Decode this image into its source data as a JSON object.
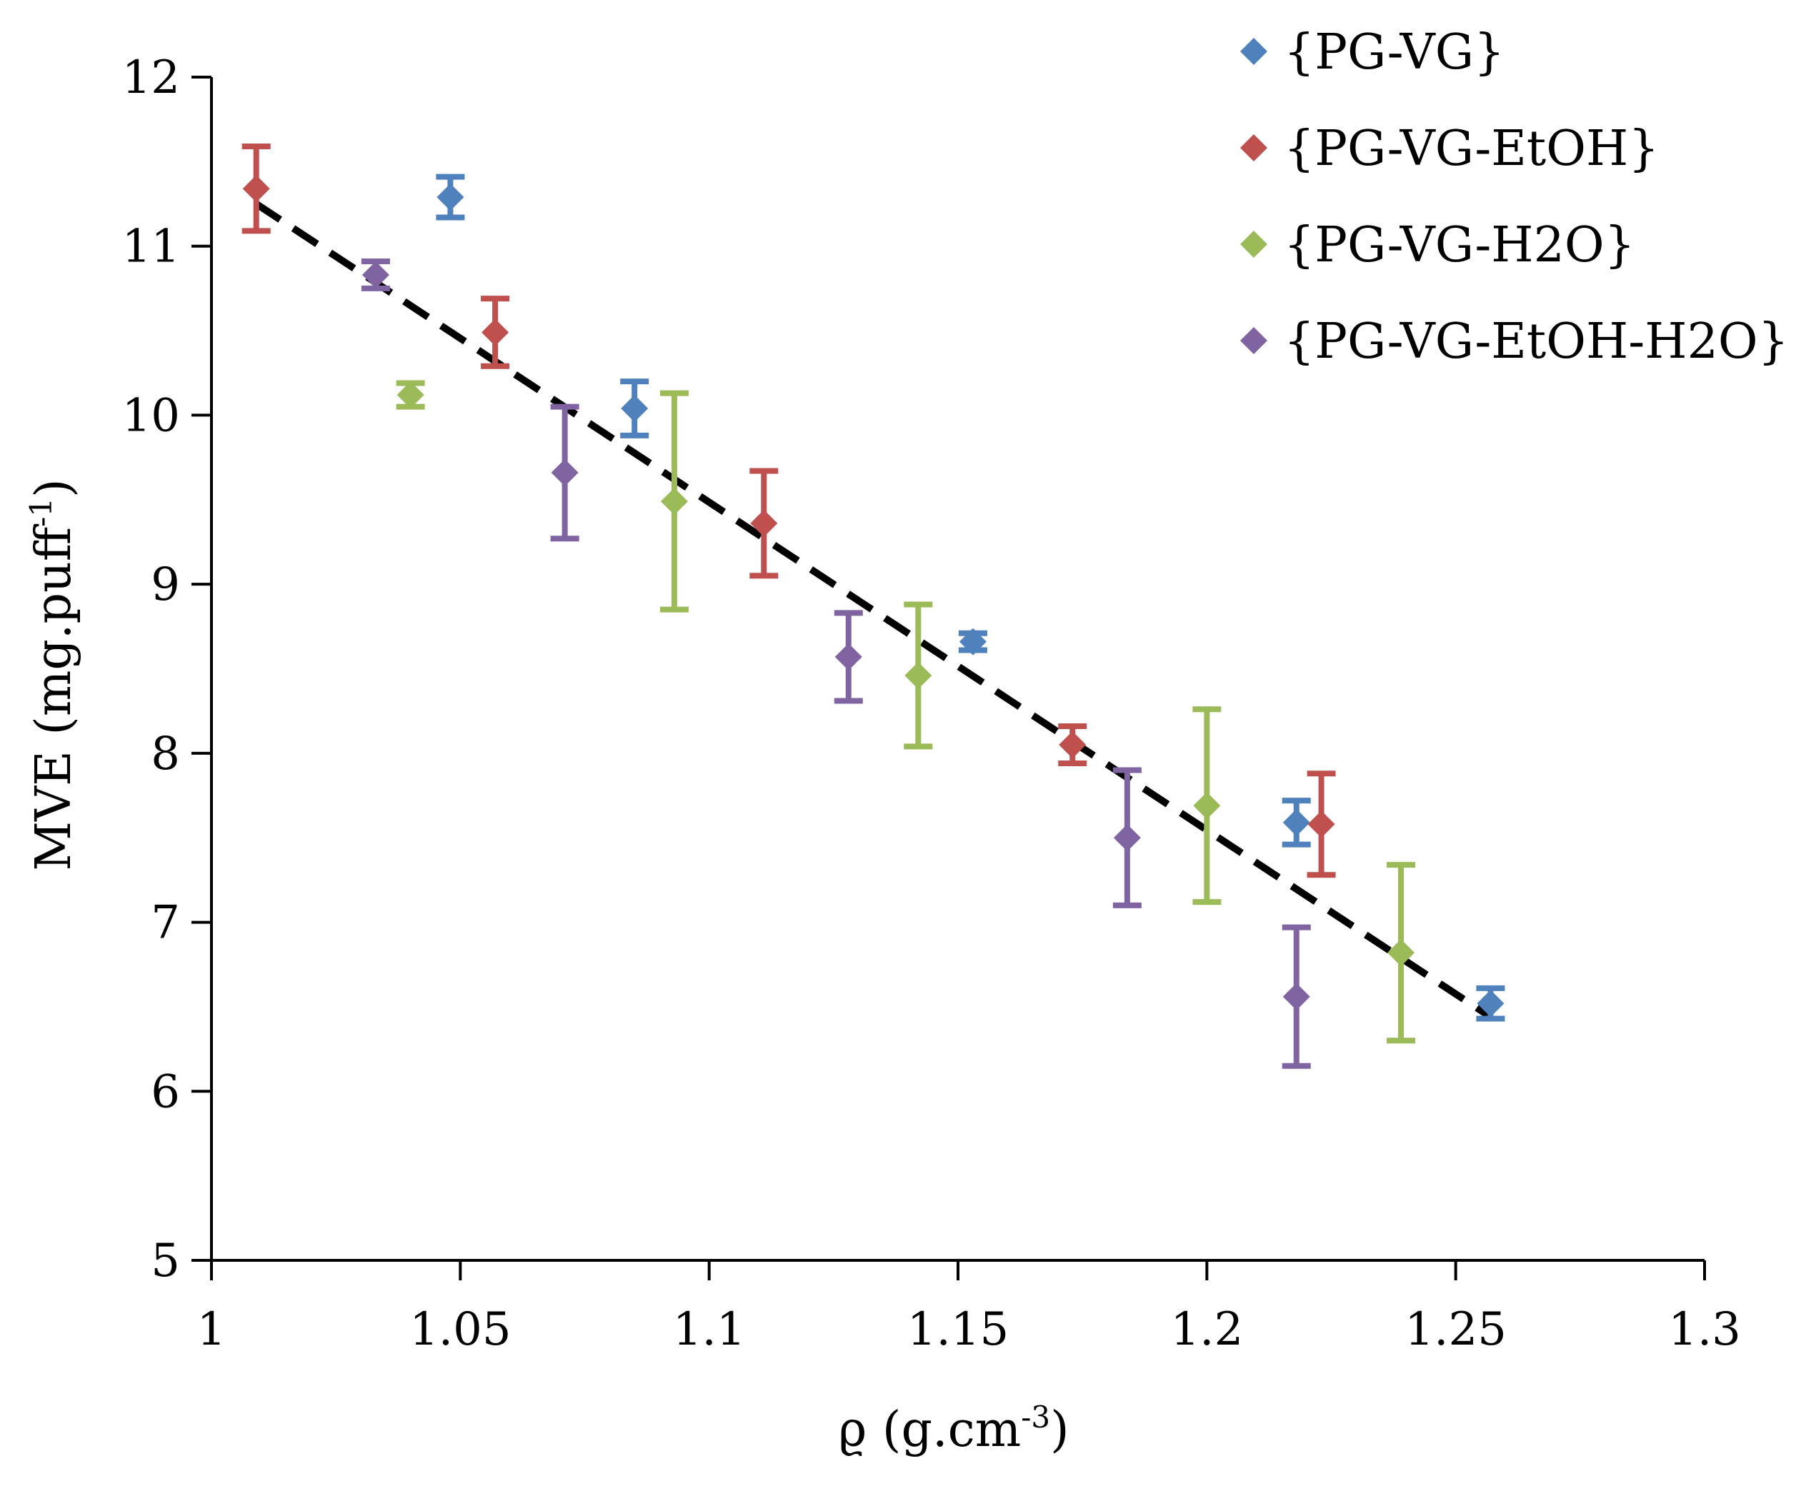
{
  "chart_data": {
    "type": "scatter",
    "title": "",
    "xlabel": "ϱ (g.cm",
    "xlabel_sup": "-3",
    "xlabel_end": ")",
    "ylabel": "MVE (mg.puff",
    "ylabel_sup": "-1",
    "ylabel_end": ")",
    "xlim": [
      1,
      1.3
    ],
    "ylim": [
      5,
      12
    ],
    "x_ticks": [
      1,
      1.05,
      1.1,
      1.15,
      1.2,
      1.25,
      1.3
    ],
    "x_tick_labels": [
      "1",
      "1.05",
      "1.1",
      "1.15",
      "1.2",
      "1.25",
      "1.3"
    ],
    "y_ticks": [
      5,
      6,
      7,
      8,
      9,
      10,
      11,
      12
    ],
    "y_tick_labels": [
      "5",
      "6",
      "7",
      "8",
      "9",
      "10",
      "11",
      "12"
    ],
    "legend_position": "top-right",
    "series": [
      {
        "name": "{PG-VG}",
        "color": "#4F81BD",
        "points": [
          {
            "x": 1.048,
            "y": 11.29,
            "err": 0.12
          },
          {
            "x": 1.085,
            "y": 10.04,
            "err": 0.16
          },
          {
            "x": 1.153,
            "y": 8.66,
            "err": 0.05
          },
          {
            "x": 1.218,
            "y": 7.59,
            "err": 0.13
          },
          {
            "x": 1.257,
            "y": 6.52,
            "err": 0.09
          }
        ]
      },
      {
        "name": "{PG-VG-EtOH}",
        "color": "#C0504D",
        "points": [
          {
            "x": 1.009,
            "y": 11.34,
            "err": 0.25
          },
          {
            "x": 1.057,
            "y": 10.49,
            "err": 0.2
          },
          {
            "x": 1.111,
            "y": 9.36,
            "err": 0.31
          },
          {
            "x": 1.173,
            "y": 8.05,
            "err": 0.11
          },
          {
            "x": 1.223,
            "y": 7.58,
            "err": 0.3
          }
        ]
      },
      {
        "name": "{PG-VG-H2O}",
        "color": "#9BBB59",
        "points": [
          {
            "x": 1.04,
            "y": 10.12,
            "err": 0.07
          },
          {
            "x": 1.093,
            "y": 9.49,
            "err": 0.64
          },
          {
            "x": 1.142,
            "y": 8.46,
            "err": 0.42
          },
          {
            "x": 1.2,
            "y": 7.69,
            "err": 0.57
          },
          {
            "x": 1.239,
            "y": 6.82,
            "err": 0.52
          }
        ]
      },
      {
        "name": "{PG-VG-EtOH-H2O}",
        "color": "#8064A2",
        "points": [
          {
            "x": 1.033,
            "y": 10.83,
            "err": 0.08
          },
          {
            "x": 1.071,
            "y": 9.66,
            "err": 0.39
          },
          {
            "x": 1.128,
            "y": 8.57,
            "err": 0.26
          },
          {
            "x": 1.184,
            "y": 7.5,
            "err": 0.4
          },
          {
            "x": 1.218,
            "y": 6.56,
            "err": 0.41
          }
        ]
      }
    ],
    "trendline": {
      "style": "dashed",
      "color": "#000000",
      "x": [
        1.009,
        1.257
      ],
      "y": [
        11.25,
        6.44
      ]
    }
  }
}
